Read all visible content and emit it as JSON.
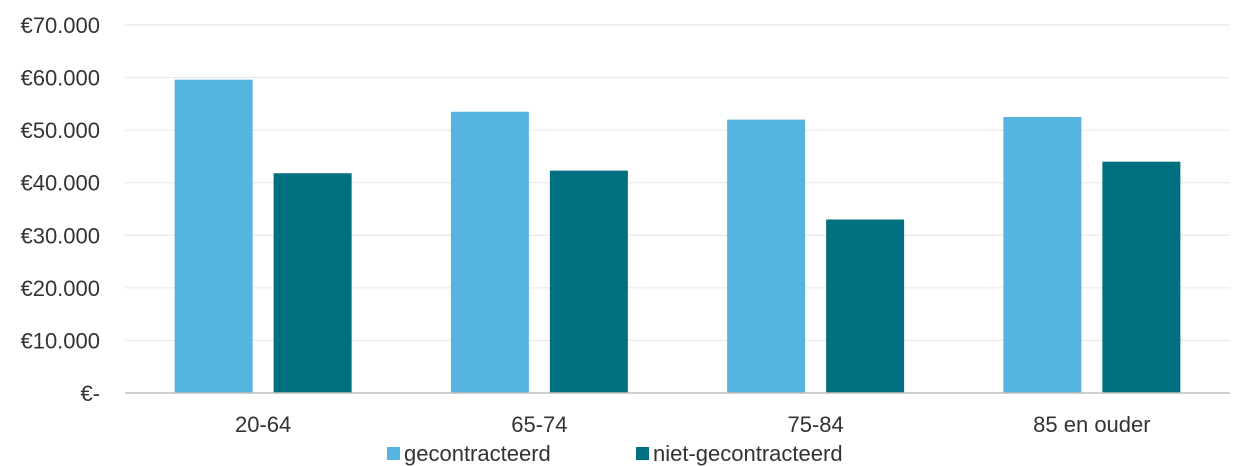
{
  "chart_data": {
    "type": "bar",
    "title": "",
    "xlabel": "",
    "ylabel": "",
    "categories": [
      "20-64",
      "65-74",
      "75-84",
      "85 en ouder"
    ],
    "series": [
      {
        "name": "gecontracteerd",
        "color": "#56b4e0",
        "values": [
          59600,
          53500,
          52000,
          52500
        ]
      },
      {
        "name": "niet-gecontracteerd",
        "color": "#007080",
        "values": [
          41800,
          42300,
          33000,
          44000
        ]
      }
    ],
    "ylim": [
      0,
      70000
    ],
    "y_ticks": [
      0,
      10000,
      20000,
      30000,
      40000,
      50000,
      60000,
      70000
    ],
    "y_tick_labels": [
      "€-",
      "€10.000",
      "€20.000",
      "€30.000",
      "€40.000",
      "€50.000",
      "€60.000",
      "€70.000"
    ],
    "grid": true,
    "legend_position": "bottom"
  }
}
